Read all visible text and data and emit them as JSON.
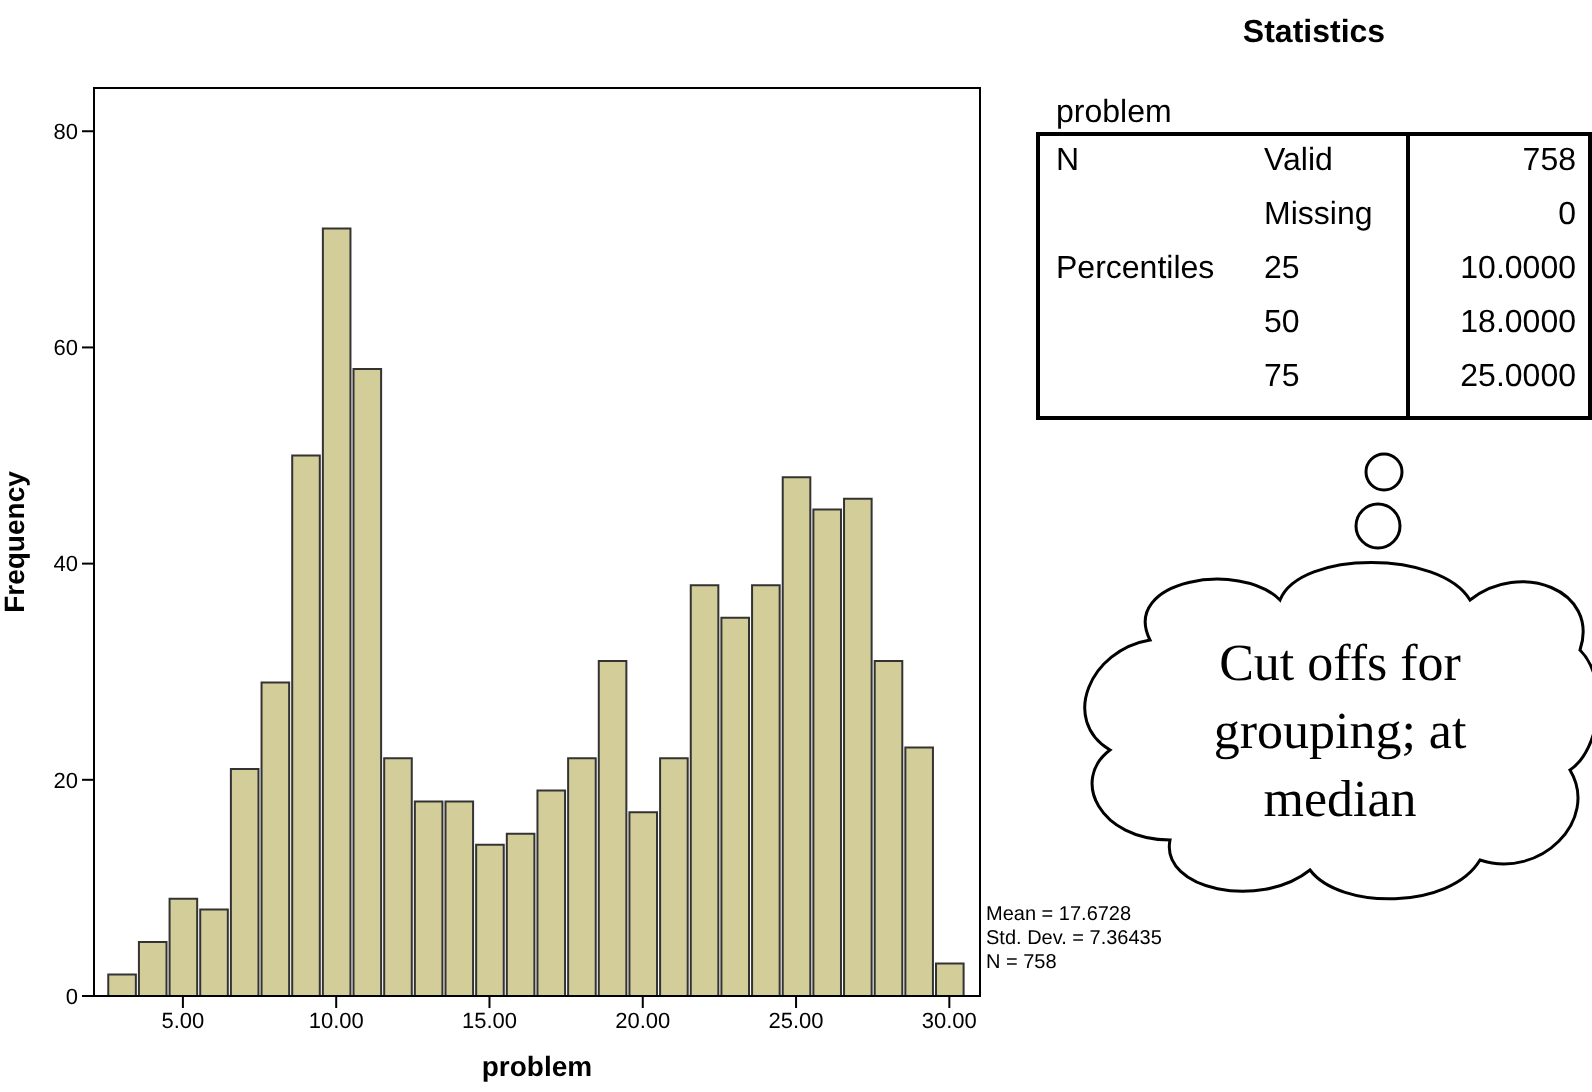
{
  "chart_data": {
    "type": "histogram",
    "xlabel": "problem",
    "ylabel": "Frequency",
    "bins": [
      2.5,
      3.5,
      4.5,
      5.5,
      6.5,
      7.5,
      8.5,
      9.5,
      10.5,
      11.5,
      12.5,
      13.5,
      14.5,
      15.5,
      16.5,
      17.5,
      18.5,
      19.5,
      20.5,
      21.5,
      22.5,
      23.5,
      24.5,
      25.5,
      26.5,
      27.5,
      28.5,
      29.5,
      30.5
    ],
    "values": [
      2,
      5,
      9,
      8,
      21,
      29,
      50,
      71,
      58,
      22,
      18,
      18,
      14,
      15,
      19,
      22,
      31,
      17,
      22,
      38,
      35,
      38,
      48,
      45,
      46,
      31,
      23,
      3
    ],
    "color": "#d3ce99",
    "xlim": [
      2.1,
      31
    ],
    "xticks": [
      {
        "value": 5,
        "label": "5.00"
      },
      {
        "value": 10,
        "label": "10.00"
      },
      {
        "value": 15,
        "label": "15.00"
      },
      {
        "value": 20,
        "label": "20.00"
      },
      {
        "value": 25,
        "label": "25.00"
      },
      {
        "value": 30,
        "label": "30.00"
      }
    ],
    "ylim": [
      0,
      84
    ],
    "yticks": [
      0,
      20,
      40,
      60,
      80
    ],
    "annotations": [
      "Statistics",
      "problem",
      "N",
      "Valid",
      "758",
      "Missing",
      "0",
      "Percentiles",
      "25",
      "10.0000",
      "50",
      "18.0000",
      "75",
      "25.0000",
      "Mean = 17.6728",
      "Std. Dev. = 7.36435",
      "N = 758",
      "Cut offs for grouping; at median"
    ]
  }
}
